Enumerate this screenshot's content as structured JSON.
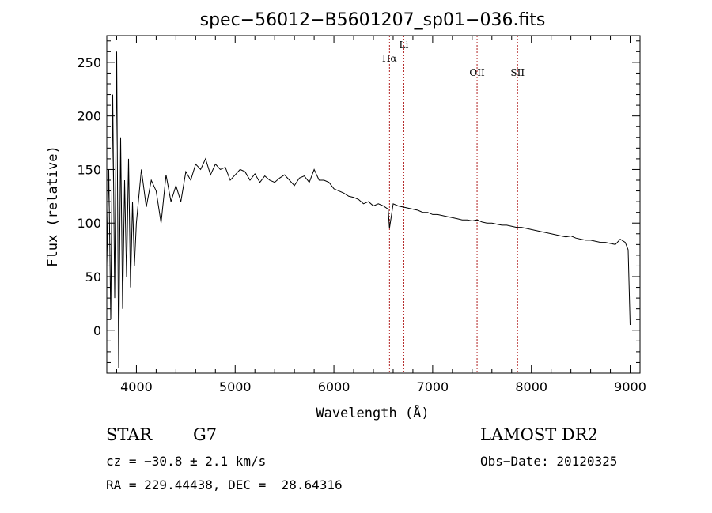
{
  "chart_data": {
    "type": "line",
    "title": "spec−56012−B5601207_sp01−036.fits",
    "xlabel": "Wavelength (Å)",
    "ylabel": "Flux (relative)",
    "xlim": [
      3700,
      9100
    ],
    "ylim": [
      -40,
      275
    ],
    "x_ticks": [
      4000,
      5000,
      6000,
      7000,
      8000,
      9000
    ],
    "y_ticks": [
      0,
      50,
      100,
      150,
      200,
      250
    ],
    "series": [
      {
        "name": "spectrum",
        "x": [
          3700,
          3720,
          3740,
          3760,
          3780,
          3800,
          3820,
          3840,
          3860,
          3880,
          3900,
          3920,
          3940,
          3960,
          3980,
          4000,
          4050,
          4100,
          4150,
          4200,
          4250,
          4300,
          4350,
          4400,
          4450,
          4500,
          4550,
          4600,
          4650,
          4700,
          4750,
          4800,
          4850,
          4900,
          4950,
          5000,
          5050,
          5100,
          5150,
          5200,
          5250,
          5300,
          5350,
          5400,
          5450,
          5500,
          5550,
          5600,
          5650,
          5700,
          5750,
          5800,
          5850,
          5900,
          5950,
          6000,
          6050,
          6100,
          6150,
          6200,
          6250,
          6300,
          6350,
          6400,
          6450,
          6500,
          6550,
          6563,
          6600,
          6650,
          6700,
          6750,
          6800,
          6850,
          6900,
          6950,
          7000,
          7050,
          7100,
          7150,
          7200,
          7250,
          7300,
          7350,
          7400,
          7450,
          7500,
          7550,
          7600,
          7650,
          7700,
          7750,
          7800,
          7850,
          7900,
          7950,
          8000,
          8050,
          8100,
          8150,
          8200,
          8250,
          8300,
          8350,
          8400,
          8450,
          8500,
          8550,
          8600,
          8650,
          8700,
          8750,
          8800,
          8850,
          8900,
          8950,
          8980,
          9000
        ],
        "values": [
          60,
          150,
          10,
          220,
          30,
          260,
          -35,
          180,
          20,
          140,
          50,
          160,
          40,
          120,
          60,
          100,
          150,
          115,
          140,
          130,
          100,
          145,
          120,
          135,
          120,
          148,
          140,
          155,
          150,
          160,
          145,
          155,
          150,
          152,
          140,
          145,
          150,
          148,
          140,
          146,
          138,
          144,
          140,
          138,
          142,
          145,
          140,
          135,
          142,
          144,
          138,
          150,
          140,
          140,
          138,
          132,
          130,
          128,
          125,
          124,
          122,
          118,
          120,
          116,
          118,
          116,
          113,
          95,
          118,
          116,
          115,
          114,
          113,
          112,
          110,
          110,
          108,
          108,
          107,
          106,
          105,
          104,
          103,
          103,
          102,
          103,
          101,
          100,
          100,
          99,
          98,
          98,
          97,
          96,
          96,
          95,
          94,
          93,
          92,
          91,
          90,
          89,
          88,
          87,
          88,
          86,
          85,
          84,
          84,
          83,
          82,
          82,
          81,
          80,
          85,
          82,
          75,
          5
        ]
      }
    ],
    "lines": [
      {
        "name": "Hα",
        "x": 6563
      },
      {
        "name": "Li",
        "x": 6708
      },
      {
        "name": "OII",
        "x": 7450
      },
      {
        "name": "SII",
        "x": 7860
      }
    ]
  },
  "info": {
    "class": "STAR",
    "subclass": "G7",
    "survey": "LAMOST DR2",
    "cz": "cz = −30.8 ± 2.1 km/s",
    "obs_date": "Obs−Date: 20120325",
    "coords": "RA = 229.44438, DEC =  28.64316"
  },
  "colors": {
    "spectrum": "#000000",
    "line_marker": "#b22222"
  }
}
